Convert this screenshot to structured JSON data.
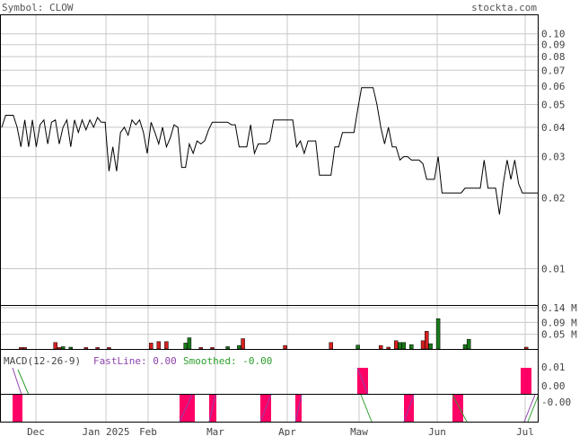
{
  "header": {
    "symbol_label": "Symbol: CLOW",
    "site": "stockta.com"
  },
  "macd": {
    "title": "MACD(12-26-9)",
    "fast_label": "FastLine: 0.00",
    "smoothed_label": "Smoothed: -0.00",
    "ticks": [
      "0.01",
      "0.00",
      "-0.00"
    ],
    "fast_color": "#8e44ad",
    "slow_color": "#2ca02c",
    "hist_color": "#ff0066"
  },
  "colors": {
    "price_line": "#000000",
    "volume_up": "#1a7a1a",
    "volume_down": "#d42020",
    "grid": "#c8c8c8"
  },
  "chart_data": [
    {
      "type": "line",
      "title": "Price",
      "scale": "log",
      "ylim": [
        0.007,
        0.12
      ],
      "y_ticks": [
        0.1,
        0.09,
        0.08,
        0.07,
        0.06,
        0.05,
        0.04,
        0.03,
        0.02,
        0.01
      ],
      "y_tick_labels": [
        "0.10",
        "0.09",
        "0.08",
        "0.07",
        "0.06",
        "0.05",
        "0.04",
        "0.03",
        "0.02",
        "0.01"
      ],
      "x_labels": [
        "Dec",
        "Jan 2025",
        "Feb",
        "Mar",
        "Apr",
        "Maw",
        "Jun",
        "Jul"
      ],
      "series": [
        {
          "values": [
            0.04,
            0.045,
            0.045,
            0.045,
            0.04,
            0.033,
            0.043,
            0.033,
            0.043,
            0.033,
            0.041,
            0.043,
            0.034,
            0.042,
            0.043,
            0.034,
            0.04,
            0.043,
            0.033,
            0.043,
            0.038,
            0.043,
            0.039,
            0.043,
            0.04,
            0.044,
            0.042,
            0.042,
            0.026,
            0.033,
            0.026,
            0.038,
            0.04,
            0.037,
            0.043,
            0.041,
            0.043,
            0.038,
            0.031,
            0.042,
            0.038,
            0.034,
            0.04,
            0.033,
            0.036,
            0.041,
            0.04,
            0.027,
            0.027,
            0.034,
            0.031,
            0.035,
            0.034,
            0.035,
            0.039,
            0.042,
            0.042,
            0.042,
            0.042,
            0.042,
            0.041,
            0.041,
            0.033,
            0.033,
            0.033,
            0.041,
            0.031,
            0.034,
            0.034,
            0.034,
            0.035,
            0.043,
            0.043,
            0.043,
            0.043,
            0.043,
            0.043,
            0.033,
            0.035,
            0.031,
            0.035,
            0.035,
            0.035,
            0.025,
            0.025,
            0.025,
            0.025,
            0.033,
            0.033,
            0.038,
            0.038,
            0.038,
            0.038,
            0.048,
            0.059,
            0.059,
            0.059,
            0.059,
            0.05,
            0.04,
            0.034,
            0.04,
            0.033,
            0.033,
            0.029,
            0.03,
            0.03,
            0.029,
            0.029,
            0.029,
            0.028,
            0.024,
            0.024,
            0.024,
            0.03,
            0.021,
            0.021,
            0.021,
            0.021,
            0.021,
            0.021,
            0.022,
            0.022,
            0.022,
            0.022,
            0.022,
            0.029,
            0.022,
            0.022,
            0.022,
            0.017,
            0.023,
            0.029,
            0.024,
            0.029,
            0.023,
            0.021,
            0.021,
            0.021,
            0.021,
            0.021
          ]
        }
      ]
    },
    {
      "type": "bar",
      "title": "Volume",
      "y_tick_labels": [
        "0.14 M",
        "0.09 M",
        "0.05 M"
      ],
      "values_m": [
        0,
        0,
        0,
        0,
        0,
        0.005,
        0.005,
        0,
        0,
        0,
        0,
        0,
        0,
        0,
        0.022,
        0.005,
        0.008,
        0,
        0.006,
        0,
        0,
        0,
        0.005,
        0,
        0,
        0.005,
        0,
        0,
        0.005,
        0,
        0,
        0,
        0,
        0,
        0,
        0,
        0,
        0,
        0,
        0.02,
        0,
        0.025,
        0,
        0.025,
        0,
        0,
        0,
        0,
        0.02,
        0.038,
        0,
        0,
        0.005,
        0,
        0,
        0.005,
        0,
        0,
        0,
        0.008,
        0,
        0,
        0.012,
        0.035,
        0,
        0,
        0,
        0,
        0,
        0,
        0,
        0,
        0,
        0,
        0.012,
        0,
        0,
        0,
        0,
        0,
        0,
        0,
        0,
        0,
        0,
        0,
        0.022,
        0,
        0,
        0,
        0,
        0,
        0,
        0.013,
        0,
        0,
        0,
        0,
        0,
        0.012,
        0,
        0.006,
        0,
        0.028,
        0.022,
        0.022,
        0,
        0.015,
        0,
        0,
        0.028,
        0.06,
        0.018,
        0,
        0.103,
        0,
        0,
        0,
        0,
        0,
        0,
        0.015,
        0.033,
        0,
        0,
        0,
        0,
        0,
        0,
        0,
        0,
        0,
        0,
        0,
        0,
        0,
        0,
        0.006,
        0,
        0,
        0,
        0,
        0
      ],
      "up": [
        0,
        0,
        0,
        0,
        0,
        0,
        0,
        0,
        0,
        0,
        0,
        0,
        0,
        0,
        0,
        0,
        1,
        0,
        1,
        0,
        0,
        0,
        0,
        0,
        0,
        0,
        0,
        0,
        0,
        0,
        0,
        0,
        0,
        0,
        0,
        0,
        0,
        0,
        0,
        0,
        0,
        0,
        0,
        0,
        0,
        0,
        0,
        0,
        1,
        1,
        0,
        0,
        0,
        0,
        0,
        0,
        0,
        0,
        0,
        1,
        0,
        0,
        1,
        0,
        0,
        0,
        0,
        0,
        0,
        0,
        0,
        0,
        0,
        0,
        0,
        0,
        0,
        0,
        0,
        0,
        0,
        0,
        0,
        0,
        0,
        0,
        0,
        0,
        0,
        0,
        0,
        0,
        0,
        1,
        0,
        0,
        0,
        0,
        0,
        0,
        0,
        0,
        0,
        0,
        1,
        1,
        0,
        1,
        0,
        0,
        0,
        0,
        1,
        0,
        1,
        0,
        0,
        0,
        0,
        0,
        0,
        1,
        1,
        0,
        0,
        0,
        0,
        0,
        0,
        0,
        0,
        0,
        0,
        0,
        0,
        0,
        0,
        0,
        0,
        0,
        0,
        0,
        0
      ]
    }
  ]
}
